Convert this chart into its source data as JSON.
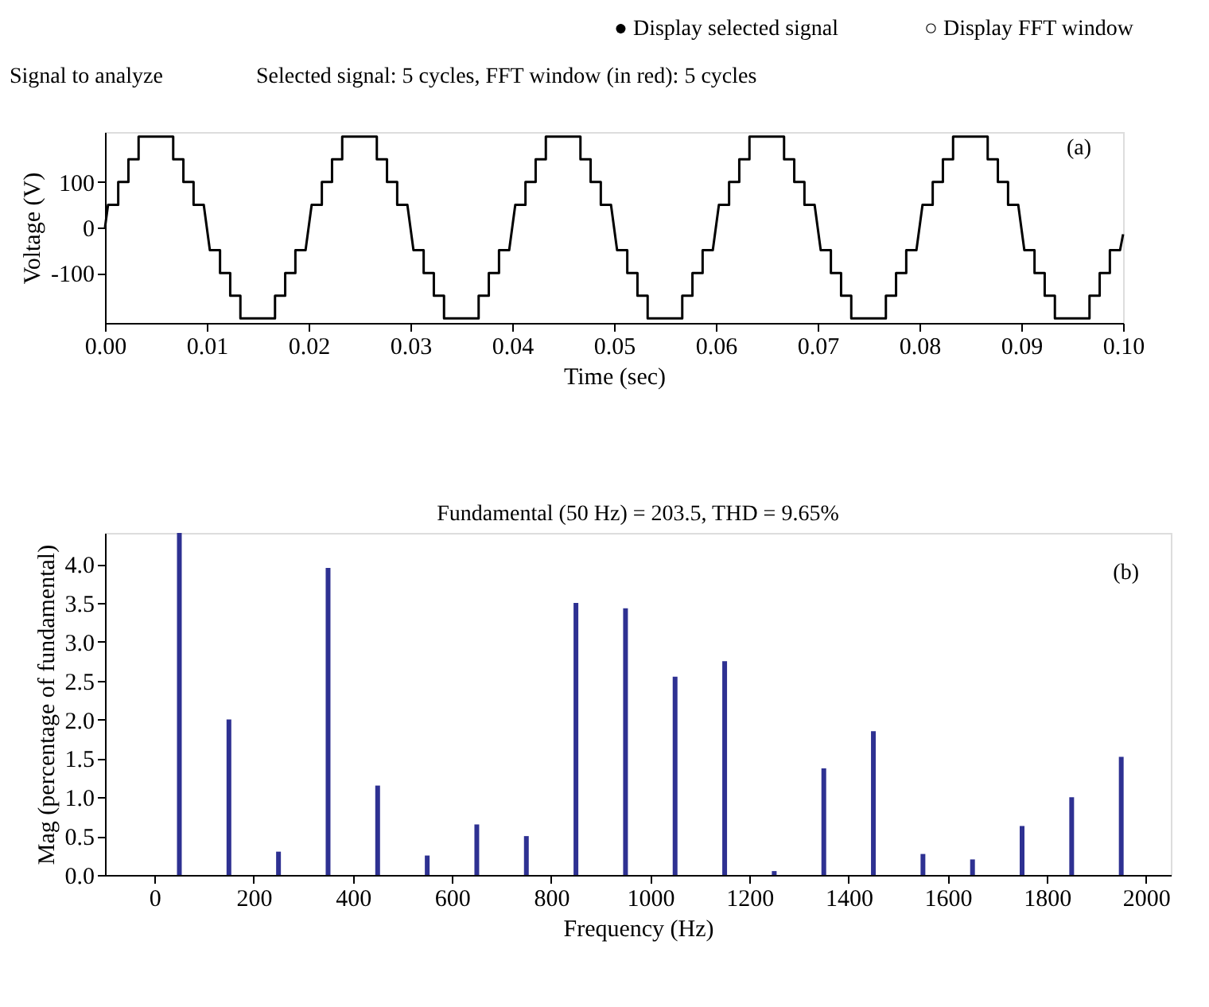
{
  "chart_data": [
    {
      "type": "line",
      "title": "Signal to analyze",
      "subtitle": "Selected signal: 5 cycles, FFT window (in red): 5 cycles",
      "annotations": [
        "● Display selected signal",
        "○ Display FFT window",
        "(a)"
      ],
      "xlabel": "Time (sec)",
      "ylabel": "Voltage (V)",
      "color": "#000000",
      "x": [
        0,
        0.0003,
        0.0013,
        0.0013,
        0.0023,
        0.0023,
        0.0033,
        0.0033,
        0.0067,
        0.0067,
        0.0077,
        0.0077,
        0.0087,
        0.0087,
        0.0097,
        0.0103,
        0.0113,
        0.0113,
        0.0123,
        0.0123,
        0.0133,
        0.0133,
        0.0167,
        0.0167,
        0.0177,
        0.0177,
        0.0187,
        0.0187,
        0.0197,
        0.0203,
        0.0213,
        0.0213,
        0.0223,
        0.0223,
        0.0233,
        0.0233,
        0.0267,
        0.0267,
        0.0277,
        0.0277,
        0.0287,
        0.0287,
        0.0297,
        0.0303,
        0.0313,
        0.0313,
        0.0323,
        0.0323,
        0.0333,
        0.0333,
        0.0367,
        0.0367,
        0.0377,
        0.0377,
        0.0387,
        0.0387,
        0.0397,
        0.0403,
        0.0413,
        0.0413,
        0.0423,
        0.0423,
        0.0433,
        0.0433,
        0.0467,
        0.0467,
        0.0477,
        0.0477,
        0.0487,
        0.0487,
        0.0497,
        0.0503,
        0.0513,
        0.0513,
        0.0523,
        0.0523,
        0.0533,
        0.0533,
        0.0567,
        0.0567,
        0.0577,
        0.0577,
        0.0587,
        0.0587,
        0.0597,
        0.0603,
        0.0613,
        0.0613,
        0.0623,
        0.0623,
        0.0633,
        0.0633,
        0.0667,
        0.0667,
        0.0677,
        0.0677,
        0.0687,
        0.0687,
        0.0697,
        0.0703,
        0.0713,
        0.0713,
        0.0723,
        0.0723,
        0.0733,
        0.0733,
        0.0767,
        0.0767,
        0.0777,
        0.0777,
        0.0787,
        0.0787,
        0.0797,
        0.0803,
        0.0813,
        0.0813,
        0.0823,
        0.0823,
        0.0833,
        0.0833,
        0.0867,
        0.0867,
        0.0877,
        0.0877,
        0.0887,
        0.0887,
        0.0897,
        0.0903,
        0.0913,
        0.0913,
        0.0923,
        0.0923,
        0.0933,
        0.0933,
        0.0967,
        0.0967,
        0.0977,
        0.0977,
        0.0987,
        0.0987,
        0.0997,
        0.1
      ],
      "values": [
        0,
        50,
        50,
        100,
        100,
        150,
        150,
        200,
        200,
        150,
        150,
        100,
        100,
        50,
        50,
        -50,
        -50,
        -100,
        -100,
        -150,
        -150,
        -200,
        -200,
        -150,
        -150,
        -100,
        -100,
        -50,
        -50,
        50,
        50,
        100,
        100,
        150,
        150,
        200,
        200,
        150,
        150,
        100,
        100,
        50,
        50,
        -50,
        -50,
        -100,
        -100,
        -150,
        -150,
        -200,
        -200,
        -150,
        -150,
        -100,
        -100,
        -50,
        -50,
        50,
        50,
        100,
        100,
        150,
        150,
        200,
        200,
        150,
        150,
        100,
        100,
        50,
        50,
        -50,
        -50,
        -100,
        -100,
        -150,
        -150,
        -200,
        -200,
        -150,
        -150,
        -100,
        -100,
        -50,
        -50,
        50,
        50,
        100,
        100,
        150,
        150,
        200,
        200,
        150,
        150,
        100,
        100,
        50,
        50,
        -50,
        -50,
        -100,
        -100,
        -150,
        -150,
        -200,
        -200,
        -150,
        -150,
        -100,
        -100,
        -50,
        -50,
        50,
        50,
        100,
        100,
        150,
        150,
        200,
        200,
        150,
        150,
        100,
        100,
        50,
        50,
        -50,
        -50,
        -100,
        -100,
        -150,
        -150,
        -200,
        -200,
        -150,
        -150,
        -100,
        -100,
        -50,
        -50,
        -15
      ],
      "xlim": [
        0,
        0.1
      ],
      "ylim": [
        -210,
        210
      ],
      "xticks": [
        {
          "value": 0,
          "label": "0.00"
        },
        {
          "value": 0.01,
          "label": "0.01"
        },
        {
          "value": 0.02,
          "label": "0.02"
        },
        {
          "value": 0.03,
          "label": "0.03"
        },
        {
          "value": 0.04,
          "label": "0.04"
        },
        {
          "value": 0.05,
          "label": "0.05"
        },
        {
          "value": 0.06,
          "label": "0.06"
        },
        {
          "value": 0.07,
          "label": "0.07"
        },
        {
          "value": 0.08,
          "label": "0.08"
        },
        {
          "value": 0.09,
          "label": "0.09"
        },
        {
          "value": 0.1,
          "label": "0.10"
        }
      ],
      "yticks": [
        -100,
        0,
        100
      ],
      "line_style": "solid",
      "marker": "none"
    },
    {
      "type": "bar",
      "title": "Fundamental (50 Hz) = 203.5, THD = 9.65%",
      "annotations": [
        "(b)"
      ],
      "xlabel": "Frequency (Hz)",
      "ylabel": "Mag (percentage of fundamental)",
      "color": "#2e3192",
      "x": [
        50,
        150,
        250,
        350,
        450,
        550,
        650,
        750,
        850,
        950,
        1050,
        1150,
        1250,
        1350,
        1450,
        1550,
        1650,
        1750,
        1850,
        1950
      ],
      "values": [
        4.4,
        2.0,
        0.3,
        3.95,
        1.15,
        0.25,
        0.65,
        0.5,
        3.5,
        3.43,
        2.55,
        2.75,
        0.05,
        1.37,
        1.85,
        0.27,
        0.2,
        0.63,
        1.0,
        1.52
      ],
      "xlim": [
        -100,
        2050
      ],
      "ylim": [
        0,
        4.4
      ],
      "xticks": [
        0,
        200,
        400,
        600,
        800,
        1000,
        1200,
        1400,
        1600,
        1800,
        2000
      ],
      "yticks": [
        {
          "value": 0,
          "label": "0.0"
        },
        {
          "value": 0.5,
          "label": "0.5"
        },
        {
          "value": 1,
          "label": "1.0"
        },
        {
          "value": 1.5,
          "label": "1.5"
        },
        {
          "value": 2,
          "label": "2.0"
        },
        {
          "value": 2.5,
          "label": "2.5"
        },
        {
          "value": 3,
          "label": "3.0"
        },
        {
          "value": 3.5,
          "label": "3.5"
        },
        {
          "value": 4,
          "label": "4.0"
        }
      ]
    }
  ]
}
